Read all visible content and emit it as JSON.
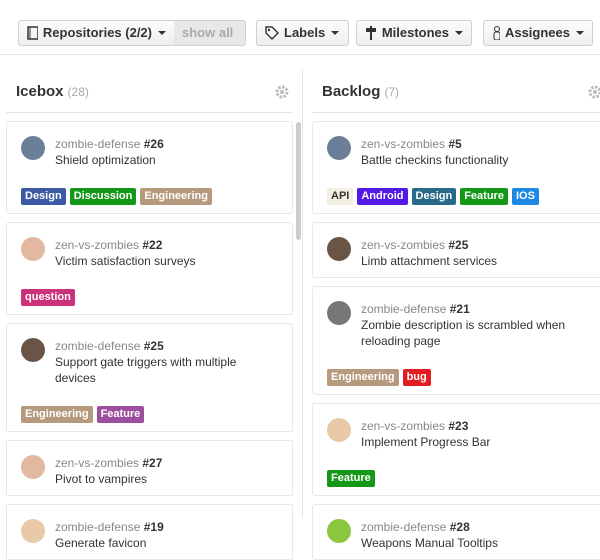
{
  "toolbar": {
    "repositories": "Repositories (2/2)",
    "show_all": "show all",
    "labels": "Labels",
    "milestones": "Milestones",
    "assignees": "Assignees"
  },
  "columns": [
    {
      "title": "Icebox",
      "count": "(28)",
      "cards": [
        {
          "repo": "zombie-defense",
          "number": "#26",
          "title": "Shield optimization",
          "avatar": "#6b7f99",
          "labels": [
            {
              "name": "Design",
              "color": "#3b5aa3"
            },
            {
              "name": "Discussion",
              "color": "#159818"
            },
            {
              "name": "Engineering",
              "color": "#b59a7e"
            }
          ]
        },
        {
          "repo": "zen-vs-zombies",
          "number": "#22",
          "title": "Victim satisfaction surveys",
          "avatar": "#e2b8a0",
          "labels": [
            {
              "name": "question",
              "color": "#cc317c"
            }
          ]
        },
        {
          "repo": "zombie-defense",
          "number": "#25",
          "title": "Support gate triggers with multiple devices",
          "avatar": "#6a5445",
          "labels": [
            {
              "name": "Engineering",
              "color": "#b59a7e"
            },
            {
              "name": "Feature",
              "color": "#9c4f9e"
            }
          ]
        },
        {
          "repo": "zen-vs-zombies",
          "number": "#27",
          "title": "Pivot to vampires",
          "avatar": "#e2b8a0",
          "labels": []
        },
        {
          "repo": "zombie-defense",
          "number": "#19",
          "title": "Generate favicon",
          "avatar": "#e8c9a8",
          "labels": []
        }
      ]
    },
    {
      "title": "Backlog",
      "count": "(7)",
      "cards": [
        {
          "repo": "zen-vs-zombies",
          "number": "#5",
          "title": "Battle checkins functionality",
          "avatar": "#6b7f99",
          "labels": [
            {
              "name": "API",
              "color": "#f3efe3",
              "text": "#333333"
            },
            {
              "name": "Android",
              "color": "#5319e7"
            },
            {
              "name": "Design",
              "color": "#286a8a"
            },
            {
              "name": "Feature",
              "color": "#159818"
            },
            {
              "name": "IOS",
              "color": "#1e88e5"
            }
          ]
        },
        {
          "repo": "zen-vs-zombies",
          "number": "#25",
          "title": "Limb attachment services",
          "avatar": "#6a5445",
          "labels": []
        },
        {
          "repo": "zombie-defense",
          "number": "#21",
          "title": "Zombie description is scrambled when reloading page",
          "avatar": "#777777",
          "labels": [
            {
              "name": "Engineering",
              "color": "#b59a7e"
            },
            {
              "name": "bug",
              "color": "#e11d21"
            }
          ]
        },
        {
          "repo": "zen-vs-zombies",
          "number": "#23",
          "title": "Implement Progress Bar",
          "avatar": "#e8c9a8",
          "labels": [
            {
              "name": "Feature",
              "color": "#159818"
            }
          ]
        },
        {
          "repo": "zombie-defense",
          "number": "#28",
          "title": "Weapons Manual Tooltips",
          "avatar": "#8cc63f",
          "labels": []
        }
      ]
    }
  ]
}
